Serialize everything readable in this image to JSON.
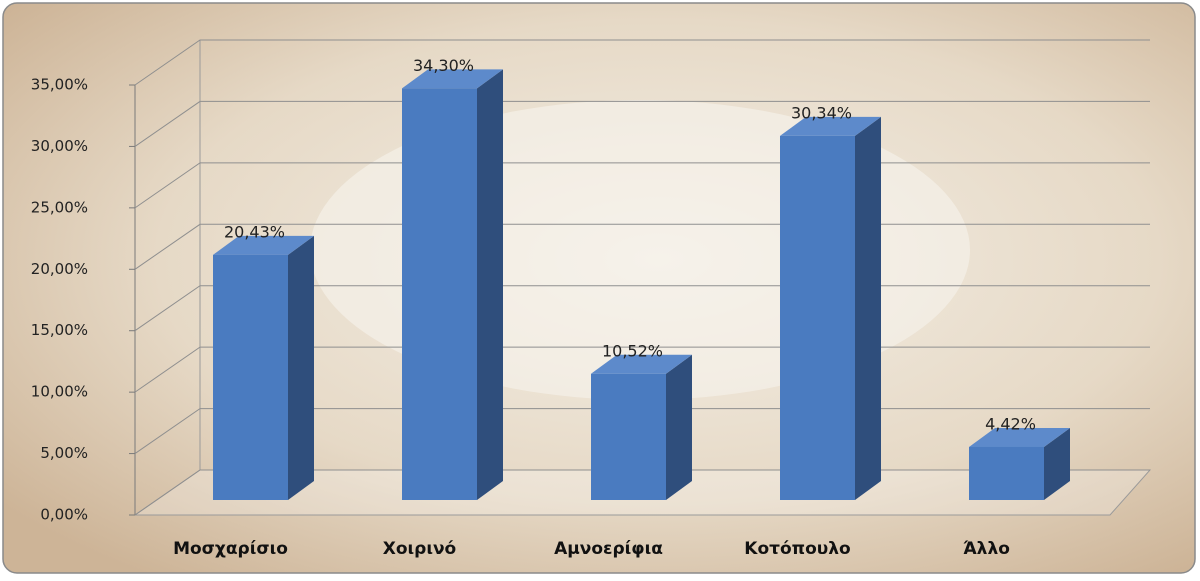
{
  "chart_data": {
    "type": "bar3d",
    "categories": [
      "Μοσχαρίσιο",
      "Χοιρινό",
      "Αμνοερίφια",
      "Κοτόπουλο",
      "Άλλο"
    ],
    "values": [
      20.43,
      34.3,
      10.52,
      30.34,
      4.42
    ],
    "value_labels": [
      "20,43%",
      "34,30%",
      "10,52%",
      "30,34%",
      "4,42%"
    ],
    "color": "#4a7bc0",
    "ylim": [
      0,
      35
    ],
    "yticks": [
      {
        "value": 0,
        "label": "0,00%"
      },
      {
        "value": 5,
        "label": "5,00%"
      },
      {
        "value": 10,
        "label": "10,00%"
      },
      {
        "value": 15,
        "label": "15,00%"
      },
      {
        "value": 20,
        "label": "20,00%"
      },
      {
        "value": 25,
        "label": "25,00%"
      },
      {
        "value": 30,
        "label": "30,00%"
      },
      {
        "value": 35,
        "label": "35,00%"
      }
    ],
    "grid": true
  }
}
